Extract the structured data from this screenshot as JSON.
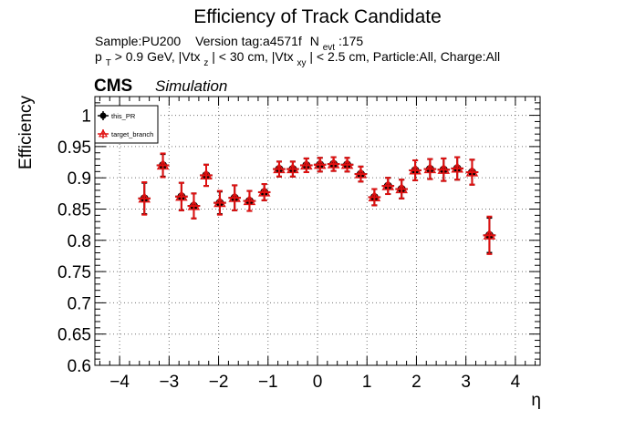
{
  "chart_data": {
    "type": "scatter",
    "title": "Efficiency of Track Candidate",
    "info_line1": {
      "sample": "Sample:PU200",
      "version": "Version tag:a4571f",
      "n_main": "N",
      "n_sub": "evt",
      "n_value": ":175"
    },
    "info_line2": {
      "p": "p",
      "p_sub": "T",
      "seg1": " > 0.9 GeV, |Vtx",
      "vtx_sub1": "z",
      "seg2": "| < 30 cm, |Vtx",
      "vtx_sub2": "xy",
      "seg3": "| < 2.5 cm, Particle:All, Charge:All"
    },
    "cms_label": "CMS",
    "cms_extra": "Simulation",
    "xlabel": "η",
    "ylabel": "Efficiency",
    "xlim": [
      -4.5,
      4.5
    ],
    "ylim": [
      0.6,
      1.03
    ],
    "xticks": [
      -4,
      -3,
      -2,
      -1,
      0,
      1,
      2,
      3,
      4
    ],
    "xtick_labels": [
      "−4",
      "−3",
      "−2",
      "−1",
      "0",
      "1",
      "2",
      "3",
      "4"
    ],
    "yticks": [
      0.6,
      0.65,
      0.7,
      0.75,
      0.8,
      0.85,
      0.9,
      0.95,
      1.0
    ],
    "ytick_labels": [
      "0.6",
      "0.65",
      "0.7",
      "0.75",
      "0.8",
      "0.85",
      "0.9",
      "0.95",
      "1"
    ],
    "grid": true,
    "legend_position": "top-left",
    "x_bin_halfwidth": 0.125,
    "series": [
      {
        "name": "this_PR",
        "color": "#000000",
        "marker": "circle",
        "x": [
          -3.5,
          -3.125,
          -2.75,
          -2.5,
          -2.25,
          -1.975,
          -1.675,
          -1.375,
          -1.075,
          -0.775,
          -0.5,
          -0.225,
          0.05,
          0.325,
          0.6,
          0.875,
          1.15,
          1.425,
          1.7,
          1.975,
          2.275,
          2.55,
          2.825,
          3.125,
          3.475
        ],
        "y": [
          0.867,
          0.92,
          0.87,
          0.855,
          0.904,
          0.86,
          0.868,
          0.863,
          0.877,
          0.914,
          0.914,
          0.92,
          0.921,
          0.922,
          0.921,
          0.906,
          0.869,
          0.887,
          0.882,
          0.912,
          0.914,
          0.913,
          0.915,
          0.909,
          0.808
        ],
        "err": [
          0.025,
          0.018,
          0.022,
          0.02,
          0.017,
          0.018,
          0.02,
          0.016,
          0.013,
          0.012,
          0.012,
          0.011,
          0.011,
          0.011,
          0.011,
          0.012,
          0.013,
          0.013,
          0.015,
          0.016,
          0.016,
          0.018,
          0.018,
          0.02,
          0.028
        ]
      },
      {
        "name": "target_branch",
        "color": "#e01010",
        "marker": "triangle",
        "x": [
          -3.5,
          -3.125,
          -2.75,
          -2.5,
          -2.25,
          -1.975,
          -1.675,
          -1.375,
          -1.075,
          -0.775,
          -0.5,
          -0.225,
          0.05,
          0.325,
          0.6,
          0.875,
          1.15,
          1.425,
          1.7,
          1.975,
          2.275,
          2.55,
          2.825,
          3.125,
          3.475
        ],
        "y": [
          0.867,
          0.92,
          0.87,
          0.855,
          0.904,
          0.86,
          0.868,
          0.863,
          0.877,
          0.914,
          0.914,
          0.92,
          0.921,
          0.922,
          0.921,
          0.906,
          0.869,
          0.887,
          0.882,
          0.912,
          0.914,
          0.913,
          0.915,
          0.909,
          0.808
        ],
        "err": [
          0.026,
          0.019,
          0.022,
          0.02,
          0.017,
          0.019,
          0.02,
          0.016,
          0.013,
          0.012,
          0.012,
          0.011,
          0.011,
          0.011,
          0.011,
          0.012,
          0.013,
          0.013,
          0.015,
          0.016,
          0.016,
          0.018,
          0.018,
          0.02,
          0.03
        ]
      }
    ]
  }
}
